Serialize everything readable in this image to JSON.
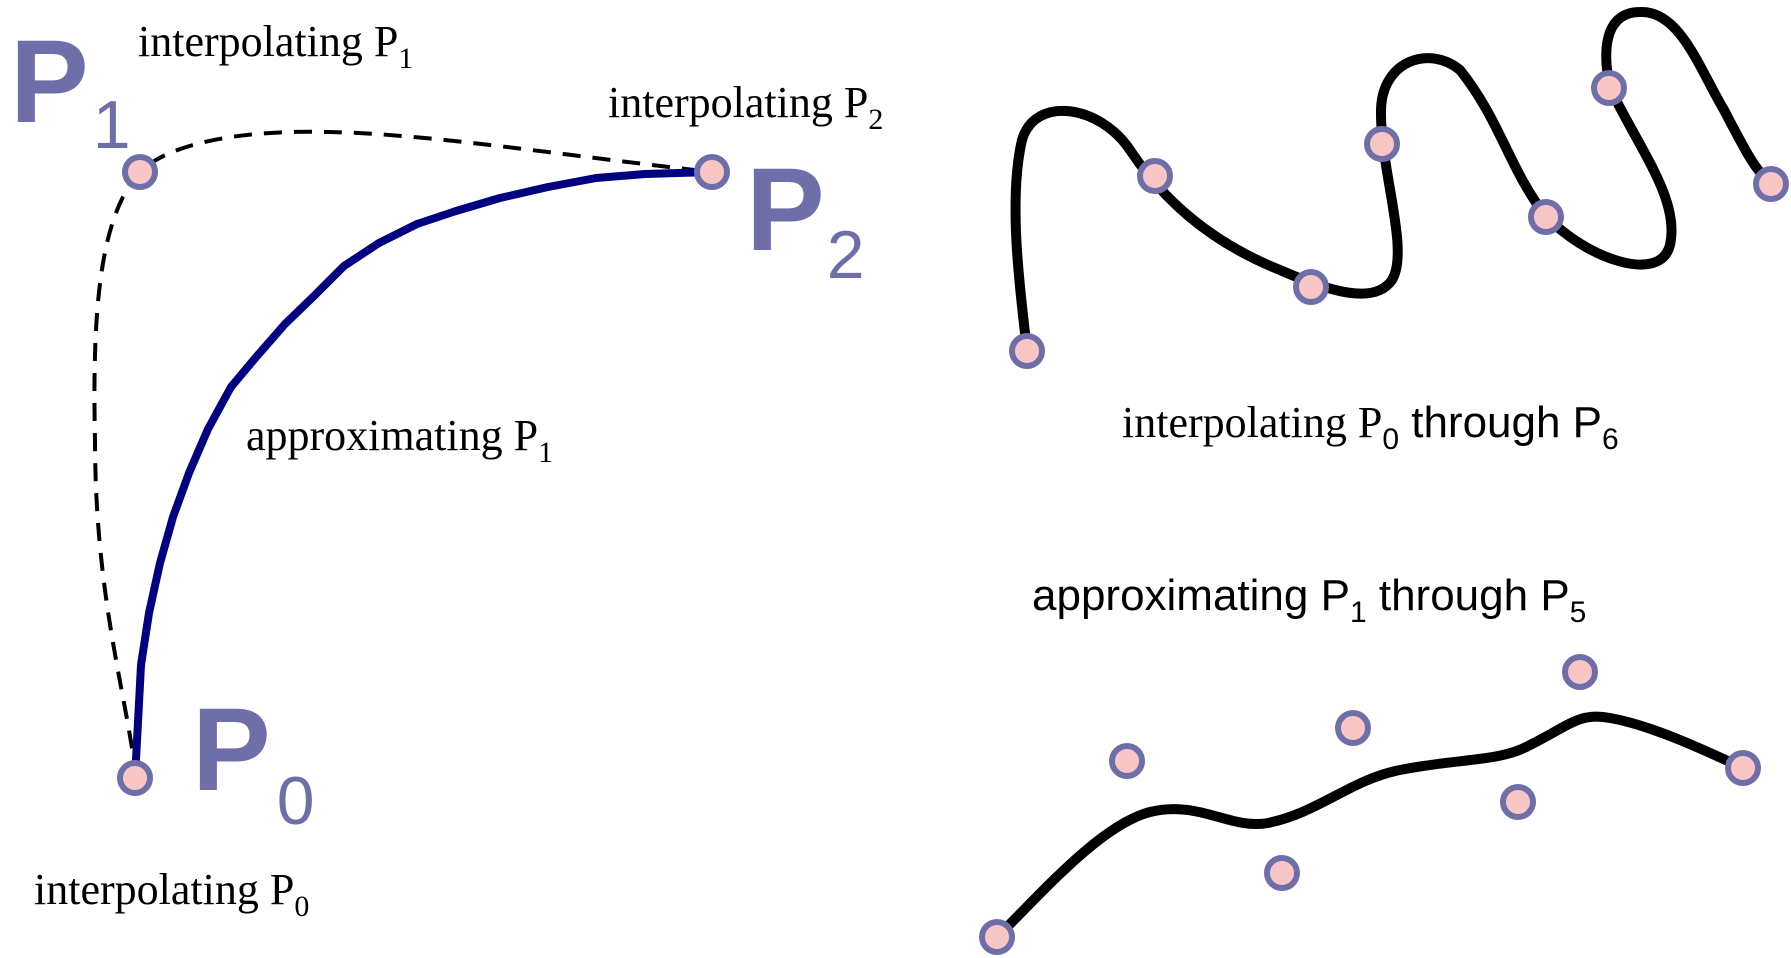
{
  "colors": {
    "point_fill": "#f9c6c6",
    "point_stroke": "#6e6fa8",
    "big_label": "#6e6fa8",
    "approx_curve": "#000080",
    "black_curve": "#000000",
    "text": "#000000"
  },
  "left": {
    "points": {
      "p0": {
        "letter": "P",
        "sub": "0"
      },
      "p1": {
        "letter": "P",
        "sub": "1"
      },
      "p2": {
        "letter": "P",
        "sub": "2"
      }
    },
    "labels": {
      "interp_p1": {
        "text": "interpolating P",
        "sub": "1"
      },
      "interp_p2": {
        "text": "interpolating P",
        "sub": "2"
      },
      "interp_p0": {
        "text": "interpolating P",
        "sub": "0"
      },
      "approx_p1": {
        "text": "approximating P",
        "sub": "1"
      }
    }
  },
  "right_top": {
    "caption": {
      "pre": "interpolating P",
      "sub_a": "0",
      "mid": " through P",
      "sub_b": "6"
    }
  },
  "right_bottom": {
    "caption": {
      "pre": "approximating P",
      "sub_a": "1",
      "mid": " through P",
      "sub_b": "5"
    }
  }
}
